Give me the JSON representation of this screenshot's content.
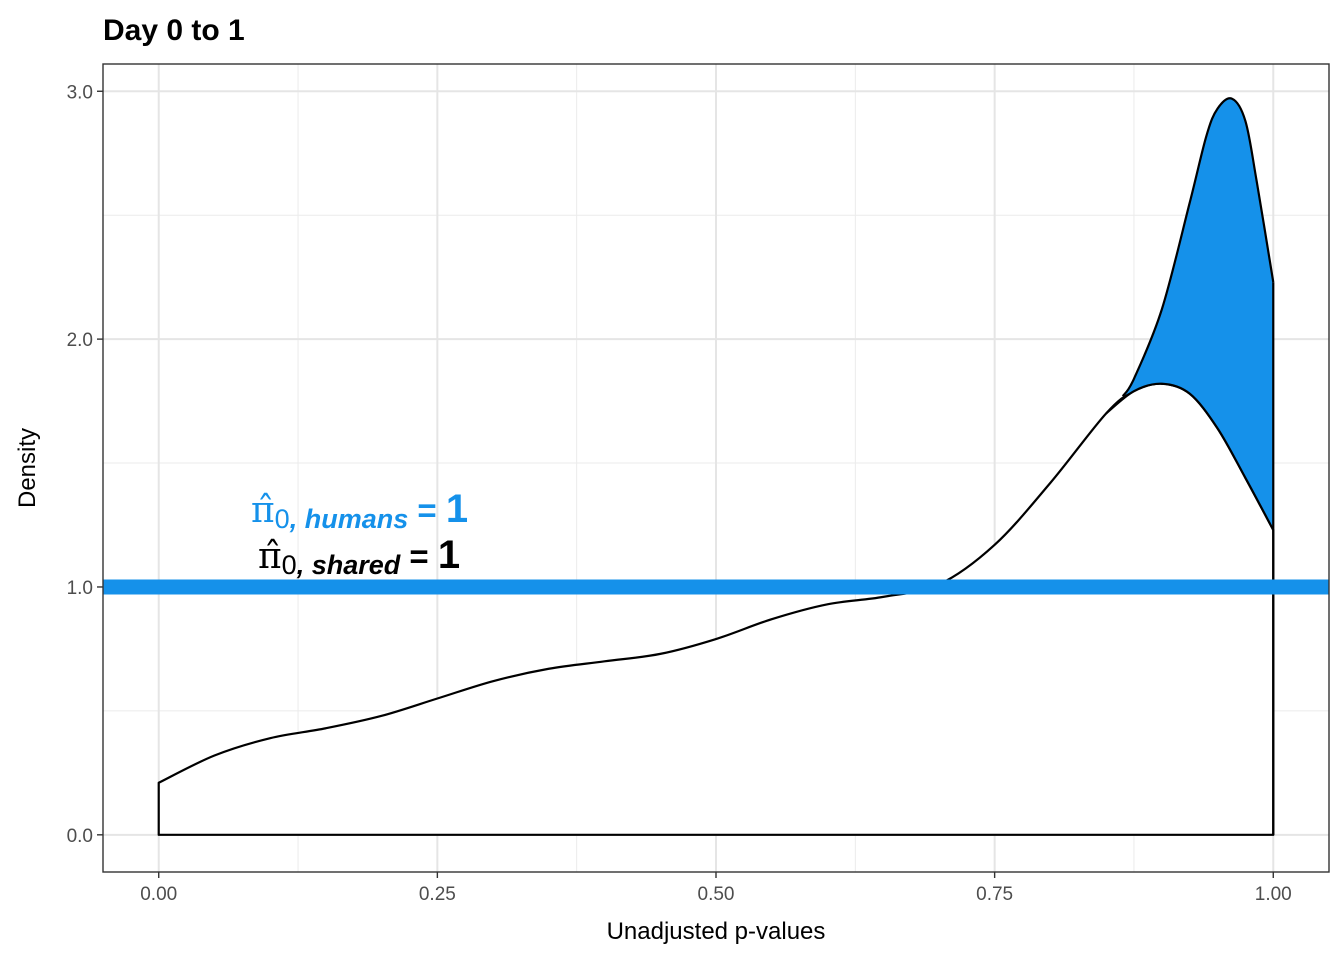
{
  "chart_data": {
    "type": "area",
    "title": "Day 0 to 1",
    "xlabel": "Unadjusted p-values",
    "ylabel": "Density",
    "xlim": [
      -0.05,
      1.05
    ],
    "ylim": [
      -0.15,
      3.11
    ],
    "x_ticks": [
      0.0,
      0.25,
      0.5,
      0.75,
      1.0
    ],
    "x_tick_labels": [
      "0.00",
      "0.25",
      "0.50",
      "0.75",
      "1.00"
    ],
    "y_ticks": [
      0.0,
      1.0,
      2.0,
      3.0
    ],
    "y_tick_labels": [
      "0.0",
      "1.0",
      "2.0",
      "3.0"
    ],
    "grid": true,
    "colors": {
      "humans": "#1591EA",
      "shared": "#000000"
    },
    "series": [
      {
        "name": "shared",
        "x": [
          0.0,
          0.05,
          0.1,
          0.15,
          0.2,
          0.25,
          0.3,
          0.35,
          0.4,
          0.45,
          0.5,
          0.55,
          0.6,
          0.65,
          0.7,
          0.75,
          0.8,
          0.85,
          0.875,
          0.9,
          0.925,
          0.95,
          0.975,
          1.0
        ],
        "values": [
          0.21,
          0.32,
          0.39,
          0.43,
          0.48,
          0.55,
          0.62,
          0.67,
          0.7,
          0.73,
          0.79,
          0.87,
          0.93,
          0.96,
          1.01,
          1.17,
          1.42,
          1.7,
          1.79,
          1.82,
          1.78,
          1.64,
          1.44,
          1.23
        ]
      },
      {
        "name": "humans",
        "x": [
          0.865,
          0.875,
          0.9,
          0.925,
          0.94,
          0.95,
          0.963,
          0.975,
          0.985,
          1.0
        ],
        "values": [
          1.77,
          1.84,
          2.12,
          2.55,
          2.82,
          2.93,
          2.97,
          2.88,
          2.64,
          2.23
        ]
      }
    ],
    "hline": {
      "y": 1.0
    },
    "annotations": [
      {
        "id": "humans",
        "symbol": "π̂",
        "sub_index": "0",
        "sub_label": ", humans",
        "equals": " = ",
        "value": "1"
      },
      {
        "id": "shared",
        "symbol": "π̂",
        "sub_index": "0",
        "sub_label": ", shared",
        "equals": " = ",
        "value": "1"
      }
    ]
  }
}
